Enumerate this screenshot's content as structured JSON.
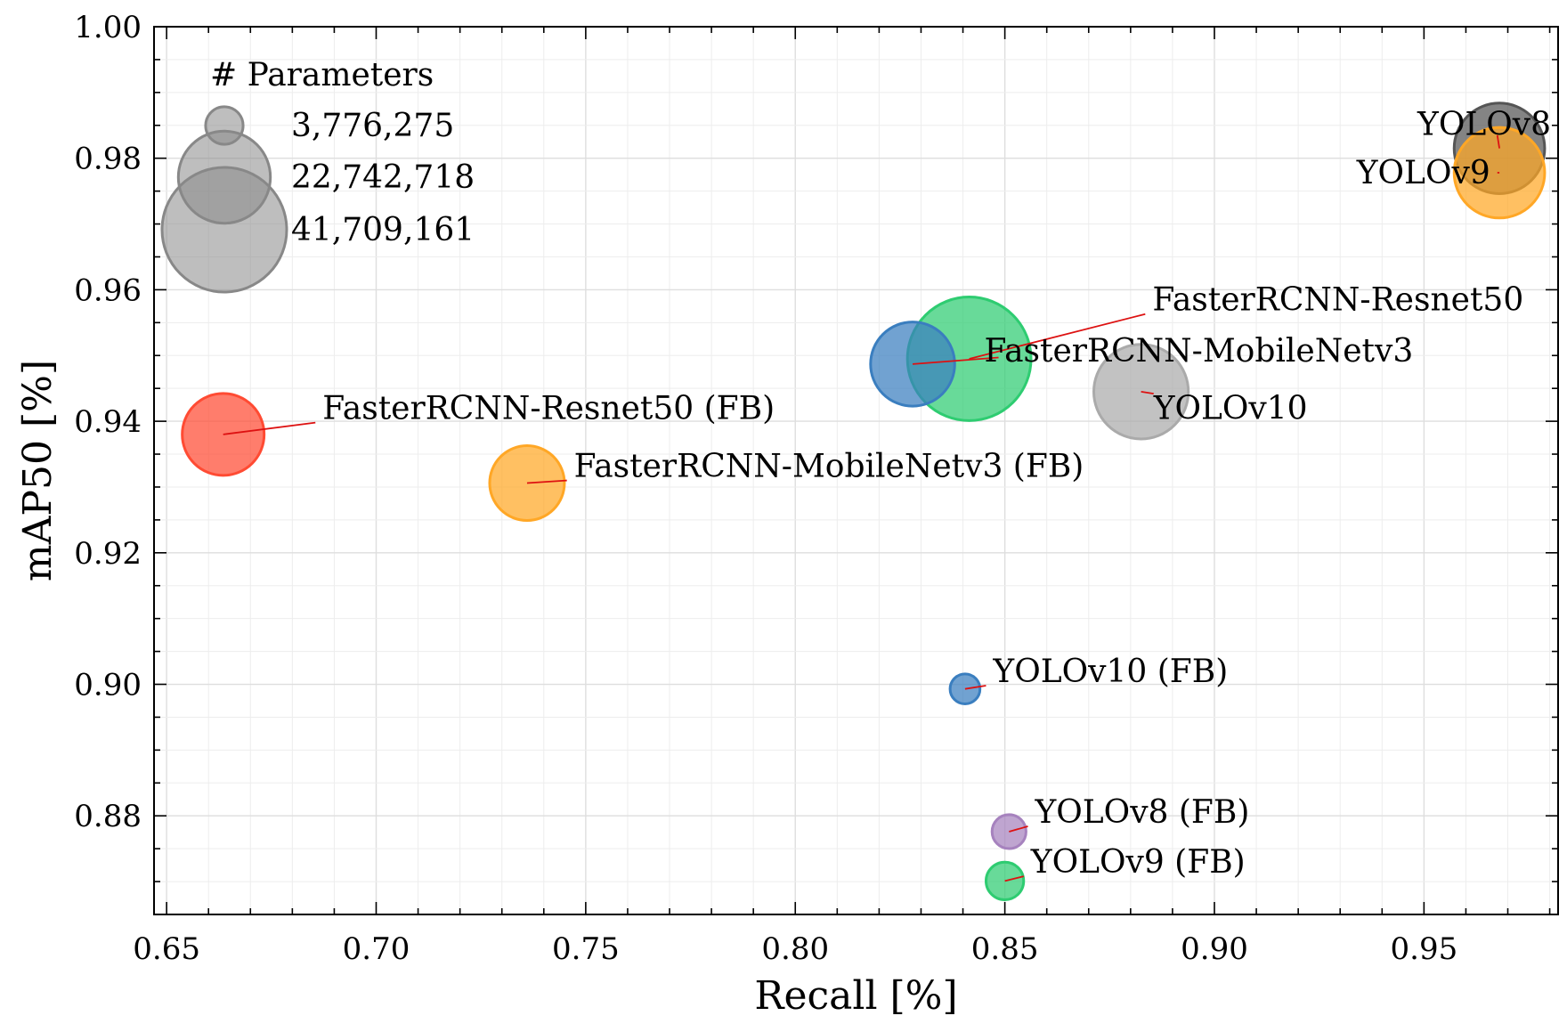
{
  "chart_data": {
    "type": "scatter",
    "xlabel": "Recall [%]",
    "ylabel": "mAP50 [%]",
    "xlim": [
      0.647,
      0.982
    ],
    "ylim": [
      0.865,
      1.0
    ],
    "x_ticks": [
      0.65,
      0.7,
      0.75,
      0.8,
      0.85,
      0.9,
      0.95
    ],
    "x_tick_labels": [
      "0.65",
      "0.70",
      "0.75",
      "0.80",
      "0.85",
      "0.90",
      "0.95"
    ],
    "y_ticks": [
      0.88,
      0.9,
      0.92,
      0.94,
      0.96,
      0.98,
      1.0
    ],
    "y_tick_labels": [
      "0.88",
      "0.90",
      "0.92",
      "0.94",
      "0.96",
      "0.98",
      "1.00"
    ],
    "grid": true,
    "legend": {
      "title": "# Parameters",
      "placement": "top-left",
      "entries": [
        {
          "label": "3,776,275",
          "size": 3776275
        },
        {
          "label": "22,742,718",
          "size": 22742718
        },
        {
          "label": "41,709,161",
          "size": 41709161
        }
      ]
    },
    "points": [
      {
        "label": "YOLOv8",
        "x": 0.968,
        "y": 0.9815,
        "size": 22000000,
        "color": "#555555",
        "label_x": 0.9675,
        "label_y": 0.9835
      },
      {
        "label": "YOLOv9",
        "x": 0.968,
        "y": 0.9778,
        "size": 22000000,
        "color": "#FFA726",
        "label_x": 0.9675,
        "label_y": 0.9778
      },
      {
        "label": "FasterRCNN-Resnet50",
        "x": 0.8415,
        "y": 0.9495,
        "size": 41000000,
        "color": "#2ECC71",
        "label_x": 0.8835,
        "label_y": 0.9563
      },
      {
        "label": "FasterRCNN-MobileNetv3",
        "x": 0.828,
        "y": 0.9487,
        "size": 19000000,
        "color": "#3A7EBF",
        "label_x": 0.8485,
        "label_y": 0.9497
      },
      {
        "label": "YOLOv10",
        "x": 0.8825,
        "y": 0.9445,
        "size": 24000000,
        "color": "#AAAAAA",
        "label_x": 0.8855,
        "label_y": 0.9442
      },
      {
        "label": "FasterRCNN-Resnet50 (FB)",
        "x": 0.6635,
        "y": 0.938,
        "size": 18000000,
        "color": "#FF4B33",
        "label_x": 0.6855,
        "label_y": 0.9398
      },
      {
        "label": "FasterRCNN-MobileNetv3 (FB)",
        "x": 0.736,
        "y": 0.9306,
        "size": 15000000,
        "color": "#FFA726",
        "label_x": 0.7455,
        "label_y": 0.931
      },
      {
        "label": "YOLOv10 (FB)",
        "x": 0.8405,
        "y": 0.8993,
        "size": 2400000,
        "color": "#3A7EBF",
        "label_x": 0.8455,
        "label_y": 0.8998
      },
      {
        "label": "YOLOv8 (FB)",
        "x": 0.851,
        "y": 0.8776,
        "size": 3100000,
        "color": "#A682BE",
        "label_x": 0.8555,
        "label_y": 0.8784
      },
      {
        "label": "YOLOv9 (FB)",
        "x": 0.85,
        "y": 0.8701,
        "size": 3800000,
        "color": "#2ECC71",
        "label_x": 0.8545,
        "label_y": 0.8708
      }
    ]
  }
}
